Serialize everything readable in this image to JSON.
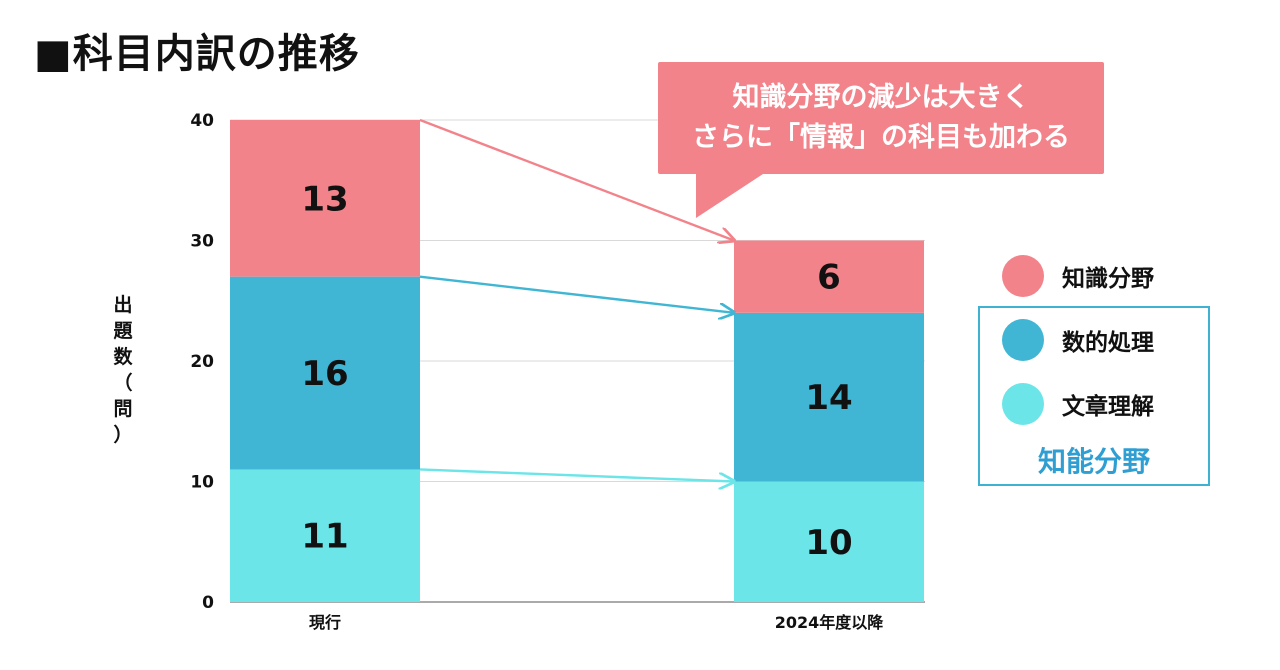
{
  "title": "■科目内訳の推移",
  "callout": {
    "line1": "知識分野の減少は大きく",
    "line2": "さらに「情報」の科目も加わる"
  },
  "legend": {
    "items": [
      {
        "label": "知識分野",
        "color": "#f2838a"
      },
      {
        "label": "数的処理",
        "color": "#40b6d4"
      },
      {
        "label": "文章理解",
        "color": "#6be5e8"
      }
    ],
    "group_label": "知能分野"
  },
  "chart_data": {
    "type": "bar",
    "stacked": true,
    "categories": [
      "現行",
      "2024年度以降"
    ],
    "series": [
      {
        "name": "文章理解",
        "values": [
          11,
          10
        ],
        "color": "#6be5e8"
      },
      {
        "name": "数的処理",
        "values": [
          16,
          14
        ],
        "color": "#40b6d4"
      },
      {
        "name": "知識分野",
        "values": [
          13,
          6
        ],
        "color": "#f2838a"
      }
    ],
    "ylabel": "出\n題\n数\n（\n問\n）",
    "ylim": [
      0,
      40
    ],
    "yticks": [
      0,
      10,
      20,
      30,
      40
    ],
    "grid": true,
    "arrow_color_connectors": true
  }
}
